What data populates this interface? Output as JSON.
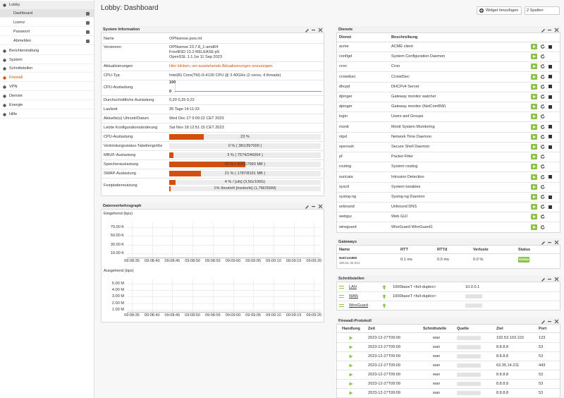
{
  "sidebar": [
    "Lobby",
    "Dashboard",
    "Lizenz",
    "Passwort",
    "Abmelden",
    "Berichterstattung",
    "System",
    "Schnittstellen",
    "Firewall",
    "VPN",
    "Dienste",
    "Energie",
    "Hilfe"
  ],
  "header": {
    "title": "Lobby: Dashboard",
    "add_widget": "Widget hinzufügen",
    "columns": "2 Spalten"
  },
  "system_information": {
    "title": "System Information",
    "rows": [
      {
        "label": "Name",
        "lines": [
          "OPNsense.joos.int"
        ]
      },
      {
        "label": "Versionen",
        "lines": [
          "OPNsense 23.7.8_1-amd64",
          "FreeBSD 13.2-RELEASE-p5",
          "OpenSSL 1.1.1w 11 Sep 2023"
        ]
      },
      {
        "label": "Aktualisierungen",
        "link": "Hier klicken, um ausstehende Aktualisierungen anzuzeigen."
      },
      {
        "label": "CPU-Typ",
        "lines": [
          "Intel(R) Core(TM) i3-4130 CPU @ 3.40GHz (2 cores, 4 threads)"
        ]
      },
      {
        "label": "CPU-Auslastung",
        "sparkline_ticks": [
          100,
          0
        ]
      },
      {
        "label": "Durchschnittliche Auslastung",
        "lines": [
          "0,20 0,25 0,22"
        ]
      },
      {
        "label": "Laufzeit",
        "lines": [
          "35 Tage 14:11:33"
        ]
      },
      {
        "label": "Aktuelle(s) Uhrzeit/Datum",
        "lines": [
          "Wed Dec 27 9:09:22 CET 2023"
        ]
      },
      {
        "label": "Letzte Konfigurationsänderung",
        "lines": [
          "Sat Nov 18 12:51:15 CET 2023"
        ]
      },
      {
        "label": "CPU-Auslastung",
        "bars": [
          {
            "percent": 23,
            "text": "23 %"
          }
        ]
      },
      {
        "label": "Verbindungsstatus-Tabellengröße",
        "bars": [
          {
            "percent": 0,
            "text": "0 % ( 381/397000 )"
          }
        ]
      },
      {
        "label": "MBUF-Auslastung",
        "bars": [
          {
            "percent": 3,
            "text": "3 % ( 7574/246064 )"
          }
        ]
      },
      {
        "label": "Speicherauslastung",
        "bars": [
          {
            "percent": 50,
            "text": "50 % ( 4031/7993 MB )"
          }
        ]
      },
      {
        "label": "SWAP-Auslastung",
        "bars": [
          {
            "percent": 21,
            "text": "21 % ( 1787/8191 MB )"
          }
        ]
      },
      {
        "label": "Festplattennutzung",
        "bars": [
          {
            "percent": 4,
            "text": "4 % / [ufs] (3,5G/100G)"
          },
          {
            "percent": 1,
            "text": "1% /boot/efi [msdosfs] (1,7M/256M)"
          }
        ]
      }
    ]
  },
  "traffic_graph": {
    "title": "Datenverkehrsgraph",
    "panels": [
      {
        "label": "Eingehend (bps)",
        "yticks": [
          "70.00 K",
          "50.00 K",
          "30.00 K",
          "10.00 K"
        ],
        "xticks": [
          "09:08:35",
          "09:08:40",
          "09:08:45",
          "09:08:50",
          "09:08:55",
          "09:09:00",
          "09:09:05",
          "09:09:10",
          "09:09:15",
          "09:09:20"
        ]
      },
      {
        "label": "Ausgehend (bps)",
        "yticks": [
          "5.00 M",
          "4.00 M",
          "3.00 M",
          "2.00 M",
          "1.00 M"
        ],
        "xticks": [
          "09:08:35",
          "09:08:40",
          "09:08:45",
          "09:08:50",
          "09:08:55",
          "09:09:00",
          "09:09:05",
          "09:09:10",
          "09:09:15",
          "09:09:20"
        ]
      }
    ]
  },
  "services": {
    "title": "Dienste",
    "columns": [
      "Dienst",
      "Beschreibung"
    ],
    "rows": [
      {
        "name": "acme",
        "description": "ACME client",
        "stop": true
      },
      {
        "name": "configd",
        "description": "System Configuration Daemon",
        "stop": false
      },
      {
        "name": "cron",
        "description": "Cron",
        "stop": true
      },
      {
        "name": "crowdsec",
        "description": "CrowdSec",
        "stop": true
      },
      {
        "name": "dhcpd",
        "description": "DHCPv4 Server",
        "stop": true
      },
      {
        "name": "dpinger",
        "description": "Gateway monitor watcher",
        "stop": true
      },
      {
        "name": "dpinger",
        "description": "Gateway monitor (NetComBW)",
        "stop": true
      },
      {
        "name": "login",
        "description": "Users and Groups",
        "stop": false
      },
      {
        "name": "monit",
        "description": "Monit System Monitoring",
        "stop": true
      },
      {
        "name": "ntpd",
        "description": "Network Time Daemon",
        "stop": true
      },
      {
        "name": "openssh",
        "description": "Secure Shell Daemon",
        "stop": true
      },
      {
        "name": "pf",
        "description": "Packet Filter",
        "stop": false
      },
      {
        "name": "routing",
        "description": "System routing",
        "stop": false
      },
      {
        "name": "suricata",
        "description": "Intrusion Detection",
        "stop": true
      },
      {
        "name": "sysctl",
        "description": "System tunables",
        "stop": false
      },
      {
        "name": "syslog-ng",
        "description": "Syslog-ng Daemon",
        "stop": true
      },
      {
        "name": "unbound",
        "description": "Unbound DNS",
        "stop": true
      },
      {
        "name": "webgui",
        "description": "Web GUI",
        "stop": false
      },
      {
        "name": "wireguard",
        "description": "WireGuard WireGuard1",
        "stop": false
      }
    ]
  },
  "gateways": {
    "title": "Gateways",
    "columns": [
      "Name",
      "RTT",
      "RTTd",
      "Verluste",
      "Status"
    ],
    "rows": [
      {
        "name": "NetComBW",
        "address": "185.61.30.231",
        "rtt": "0.1 ms",
        "rttd": "0.0 ms",
        "loss": "0.0 %",
        "status": "Online"
      }
    ]
  },
  "interfaces": {
    "title": "Schnittstellen",
    "rows": [
      {
        "name": "LAN",
        "media": "1000baseT <full-duplex>",
        "ip": "10.0.0.1"
      },
      {
        "name": "WAN",
        "media": "1000baseT <full-duplex>"
      },
      {
        "name": "WireGuard"
      }
    ]
  },
  "firewall_log": {
    "title": "Firewall-Protokoll",
    "columns": [
      "Handlung",
      "Zeit",
      "Schnittstelle",
      "Quelle",
      "Ziel",
      "Port"
    ],
    "rows": [
      {
        "time": "2023-12-27T09:09",
        "interface": "wan",
        "destination": "192.53.103.103",
        "port": "123"
      },
      {
        "time": "2023-12-27T09:09",
        "interface": "wan",
        "destination": "8.8.8.8",
        "port": "53"
      },
      {
        "time": "2023-12-27T09:09",
        "interface": "wan",
        "destination": "8.8.8.8",
        "port": "53"
      },
      {
        "time": "2023-12-27T09:09",
        "interface": "wan",
        "destination": "63.35.14.211",
        "port": "443"
      },
      {
        "time": "2023-12-27T09:09",
        "interface": "wan",
        "destination": "8.8.8.8",
        "port": "53"
      },
      {
        "time": "2023-12-27T09:09",
        "interface": "wan",
        "destination": "8.8.8.8",
        "port": "53"
      },
      {
        "time": "2023-12-27T09:09",
        "interface": "wan",
        "destination": "8.8.8.8",
        "port": "53"
      }
    ]
  }
}
